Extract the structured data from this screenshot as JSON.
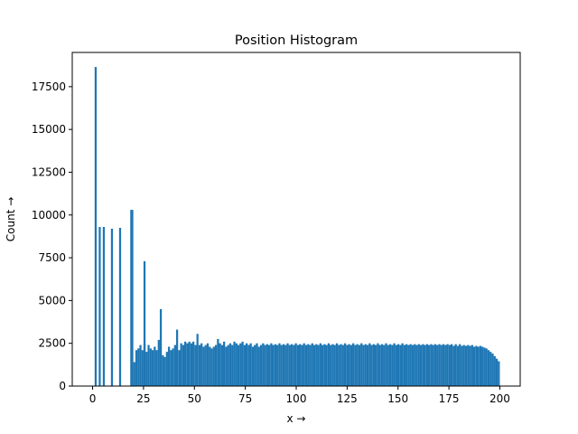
{
  "chart_data": {
    "type": "bar",
    "title": "Position Histogram",
    "xlabel": "x →",
    "ylabel": "Count →",
    "xlim": [
      -10,
      210
    ],
    "ylim": [
      0,
      19500
    ],
    "x_ticks": [
      0,
      25,
      50,
      75,
      100,
      125,
      150,
      175,
      200
    ],
    "y_ticks": [
      0,
      2500,
      5000,
      7500,
      10000,
      12500,
      15000,
      17500
    ],
    "bar_color": "#1f77b4",
    "grid": false,
    "legend": "none",
    "bins": [
      {
        "x0": 1,
        "x1": 2,
        "count": 18650
      },
      {
        "x0": 3,
        "x1": 4,
        "count": 9300
      },
      {
        "x0": 5,
        "x1": 6,
        "count": 9300
      },
      {
        "x0": 9,
        "x1": 10,
        "count": 9200
      },
      {
        "x0": 13,
        "x1": 14,
        "count": 9250
      },
      {
        "x0": 18.5,
        "x1": 20,
        "count": 10300
      },
      {
        "x0": 25,
        "x1": 26,
        "count": 7300
      },
      {
        "x0": 33,
        "x1": 34,
        "count": 4500
      },
      {
        "x0": 41,
        "x1": 42,
        "count": 3300
      },
      {
        "x0": 51,
        "x1": 52,
        "count": 3050
      }
    ],
    "dense_segments": [
      {
        "x_start": 20,
        "x_end": 26,
        "counts": [
          1400,
          2100,
          2200,
          2400,
          2100,
          2500
        ]
      },
      {
        "x_start": 26,
        "x_end": 33,
        "counts": [
          2000,
          2400,
          2200,
          2100,
          2300,
          2100,
          2700
        ]
      },
      {
        "x_start": 34,
        "x_end": 41,
        "counts": [
          1800,
          1700,
          2000,
          2300,
          2100,
          2200,
          2400
        ]
      },
      {
        "x_start": 42,
        "x_end": 51,
        "counts": [
          2100,
          2500,
          2400,
          2600,
          2500,
          2600,
          2500,
          2600,
          2400
        ]
      },
      {
        "x_start": 52,
        "x_end": 200,
        "counts": [
          2400,
          2500,
          2300,
          2400,
          2500,
          2300,
          2200,
          2300,
          2400,
          2750,
          2500,
          2400,
          2600,
          2300,
          2400,
          2500,
          2400,
          2600,
          2500,
          2400,
          2500,
          2600,
          2400,
          2500,
          2400,
          2500,
          2300,
          2400,
          2500,
          2300,
          2400,
          2500,
          2400,
          2450,
          2400,
          2500,
          2400,
          2450,
          2400,
          2500,
          2400,
          2450,
          2400,
          2500,
          2400,
          2450,
          2400,
          2500,
          2400,
          2450,
          2400,
          2500,
          2400,
          2450,
          2400,
          2500,
          2400,
          2450,
          2400,
          2500,
          2400,
          2450,
          2400,
          2500,
          2400,
          2450,
          2400,
          2500,
          2400,
          2450,
          2400,
          2500,
          2400,
          2450,
          2400,
          2500,
          2400,
          2450,
          2400,
          2500,
          2400,
          2450,
          2400,
          2500,
          2400,
          2450,
          2400,
          2500,
          2400,
          2450,
          2400,
          2500,
          2400,
          2450,
          2400,
          2500,
          2400,
          2450,
          2400,
          2500,
          2400,
          2450,
          2400,
          2450,
          2400,
          2450,
          2400,
          2450,
          2400,
          2450,
          2400,
          2450,
          2400,
          2450,
          2400,
          2450,
          2400,
          2450,
          2400,
          2450,
          2400,
          2450,
          2400,
          2450,
          2350,
          2450,
          2350,
          2450,
          2350,
          2400,
          2350,
          2400,
          2350,
          2400,
          2300,
          2350,
          2300,
          2350,
          2300,
          2250,
          2200,
          2100,
          2000,
          1900,
          1750,
          1600,
          1450
        ]
      }
    ]
  }
}
